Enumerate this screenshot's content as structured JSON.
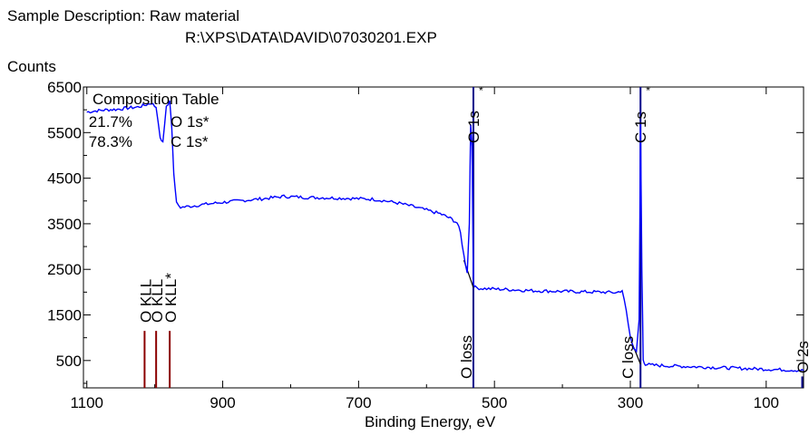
{
  "header": {
    "sample_label": "Sample Description: Raw material",
    "file_path": "R:\\XPS\\DATA\\DAVID\\07030201.EXP"
  },
  "chart_data": {
    "type": "line",
    "title": "",
    "xlabel": "Binding Energy, eV",
    "ylabel": "Counts",
    "xlim": [
      1105,
      45
    ],
    "ylim": [
      -100,
      6500
    ],
    "x_reversed": true,
    "x_ticks": [
      1100,
      900,
      700,
      500,
      300,
      100
    ],
    "x_tick_labels": [
      "1100",
      "900",
      "700",
      "500",
      "300",
      "100"
    ],
    "y_ticks": [
      500,
      1500,
      2500,
      3500,
      4500,
      5500,
      6500
    ],
    "y_tick_labels": [
      "500",
      "1500",
      "2500",
      "3500",
      "4500",
      "5500",
      "6500"
    ],
    "grid": false,
    "series": [
      {
        "color": "#0000ff",
        "points": [
          [
            1100,
            5950
          ],
          [
            1085,
            5980
          ],
          [
            1070,
            6000
          ],
          [
            1055,
            6010
          ],
          [
            1040,
            6040
          ],
          [
            1025,
            6060
          ],
          [
            1015,
            6100
          ],
          [
            1005,
            6150
          ],
          [
            998,
            6050
          ],
          [
            992,
            5400
          ],
          [
            988,
            5300
          ],
          [
            983,
            6050
          ],
          [
            978,
            6200
          ],
          [
            975,
            5600
          ],
          [
            972,
            4600
          ],
          [
            968,
            3950
          ],
          [
            962,
            3860
          ],
          [
            950,
            3880
          ],
          [
            930,
            3920
          ],
          [
            900,
            3970
          ],
          [
            870,
            4010
          ],
          [
            840,
            4050
          ],
          [
            810,
            4100
          ],
          [
            780,
            4080
          ],
          [
            750,
            4070
          ],
          [
            720,
            4060
          ],
          [
            700,
            4050
          ],
          [
            680,
            4040
          ],
          [
            660,
            4000
          ],
          [
            640,
            3950
          ],
          [
            620,
            3880
          ],
          [
            600,
            3800
          ],
          [
            580,
            3720
          ],
          [
            565,
            3620
          ],
          [
            555,
            3520
          ],
          [
            550,
            3300
          ],
          [
            545,
            2800
          ],
          [
            540,
            2420
          ],
          [
            537,
            3500
          ],
          [
            535,
            5700
          ],
          [
            533,
            5200
          ],
          [
            531,
            2200
          ],
          [
            528,
            2100
          ],
          [
            520,
            2080
          ],
          [
            500,
            2070
          ],
          [
            470,
            2050
          ],
          [
            440,
            2030
          ],
          [
            410,
            2020
          ],
          [
            380,
            2010
          ],
          [
            340,
            2000
          ],
          [
            320,
            1990
          ],
          [
            312,
            2040
          ],
          [
            306,
            1600
          ],
          [
            300,
            1000
          ],
          [
            295,
            760
          ],
          [
            291,
            700
          ],
          [
            287,
            1400
          ],
          [
            285,
            5700
          ],
          [
            283,
            2500
          ],
          [
            281,
            520
          ],
          [
            278,
            420
          ],
          [
            270,
            400
          ],
          [
            240,
            380
          ],
          [
            200,
            360
          ],
          [
            160,
            340
          ],
          [
            120,
            320
          ],
          [
            80,
            300
          ],
          [
            60,
            290
          ],
          [
            45,
            280
          ]
        ]
      }
    ],
    "peak_labels": [
      {
        "text": "O 1s",
        "x": 531,
        "marker": "true"
      },
      {
        "text": "C 1s",
        "x": 285,
        "marker": "true"
      },
      {
        "text": "O loss",
        "x": 531,
        "marker": "true"
      },
      {
        "text": "C loss",
        "x": 285,
        "marker": "true"
      },
      {
        "text": "O 2s",
        "x": 23,
        "marker": "true"
      }
    ],
    "auger_labels": [
      {
        "text": "O KLL",
        "x": 1015
      },
      {
        "text": "O KLL",
        "x": 998
      },
      {
        "text": "O KLL*",
        "x": 978
      }
    ],
    "composition_table": {
      "title": "Composition Table",
      "rows": [
        {
          "percent": "21.7%",
          "element": "O 1s*"
        },
        {
          "percent": "78.3%",
          "element": "C 1s*"
        }
      ]
    }
  }
}
